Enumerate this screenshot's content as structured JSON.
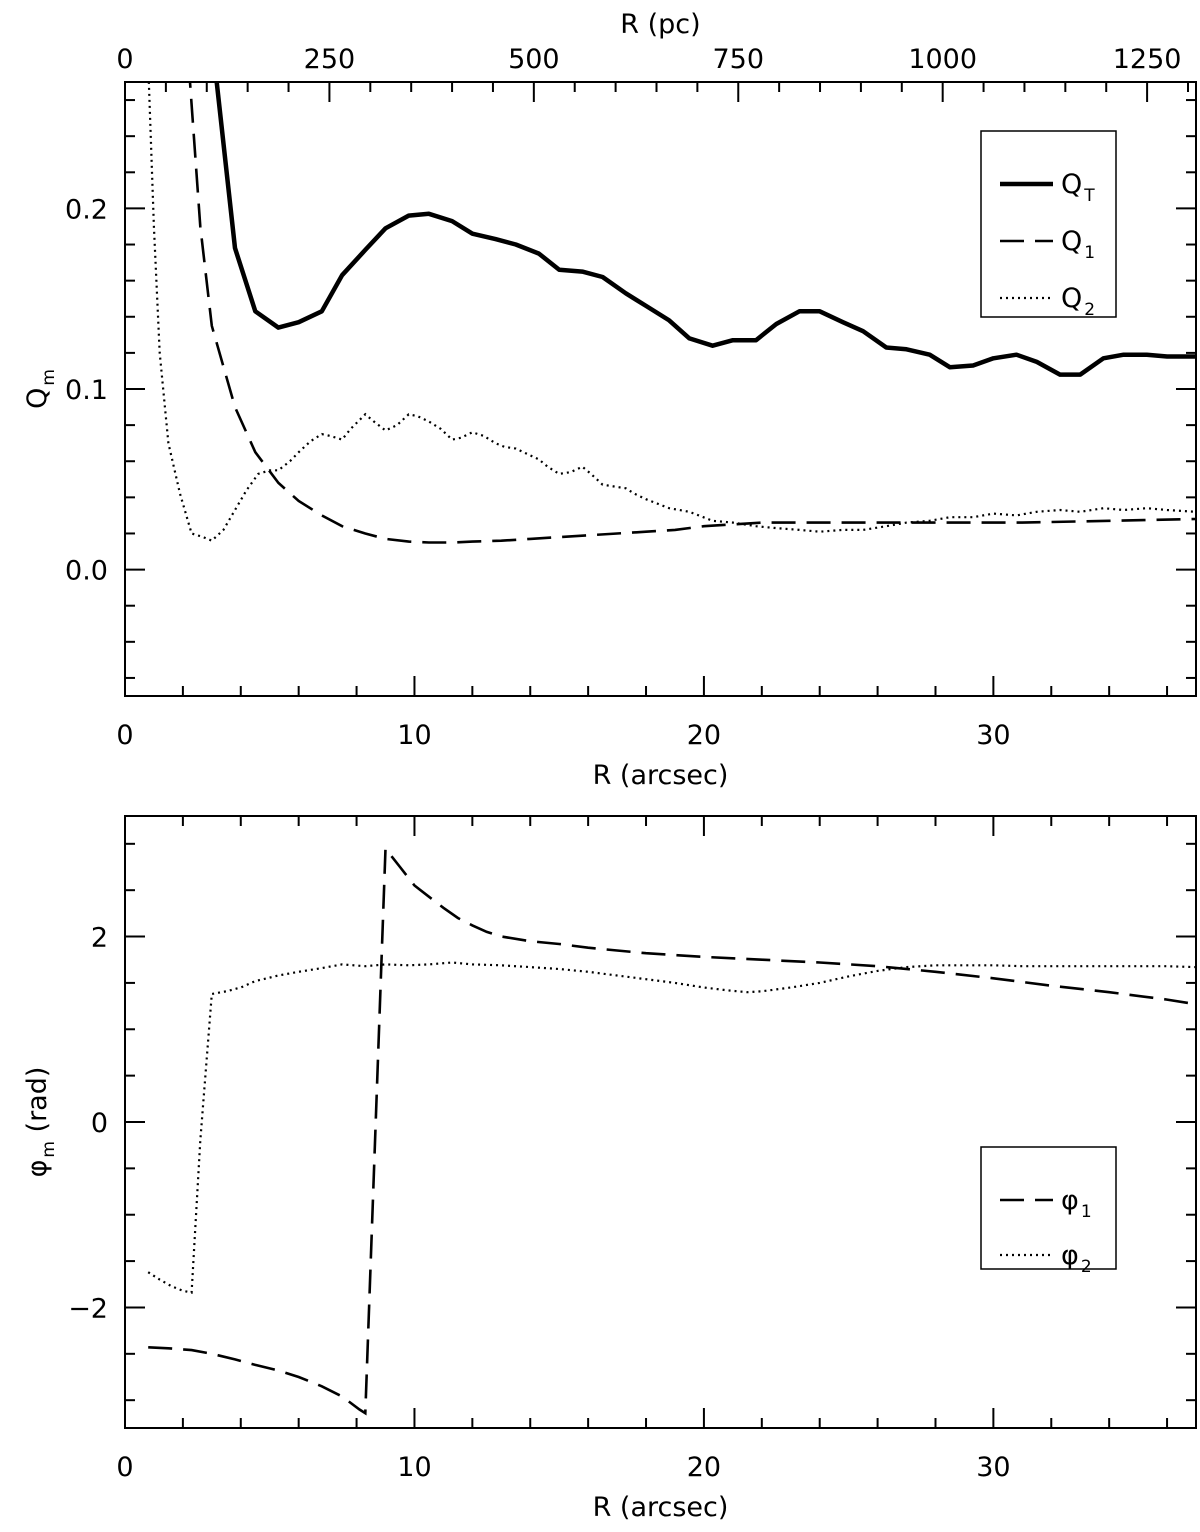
{
  "chart_data": [
    {
      "type": "line",
      "id": "top",
      "xlabel": "R (arcsec)",
      "ylabel": {
        "main": "Q",
        "sub": "m"
      },
      "xlim": [
        0,
        37
      ],
      "ylim": [
        -0.07,
        0.27
      ],
      "xticks": [
        0,
        10,
        20,
        30
      ],
      "xtick_labels": [
        "0",
        "10",
        "20",
        "30"
      ],
      "yticks": [
        0.0,
        0.1,
        0.2
      ],
      "ytick_labels": [
        "0.0",
        "0.1",
        "0.2"
      ],
      "top_axis": {
        "label": "R (pc)",
        "scale_pc_per_arcsec": 35.4,
        "ticks": [
          0,
          250,
          500,
          750,
          1000,
          1250
        ],
        "tick_labels": [
          "0",
          "250",
          "500",
          "750",
          "1000",
          "1250"
        ]
      },
      "legend": {
        "position": "top-right"
      },
      "series": [
        {
          "name": "Q_T",
          "label_main": "Q",
          "label_sub": "T",
          "style": "solid",
          "points": [
            [
              3.1,
              0.28
            ],
            [
              3.8,
              0.178
            ],
            [
              4.5,
              0.143
            ],
            [
              5.3,
              0.134
            ],
            [
              6.0,
              0.137
            ],
            [
              6.8,
              0.143
            ],
            [
              7.5,
              0.163
            ],
            [
              8.3,
              0.177
            ],
            [
              9.0,
              0.189
            ],
            [
              9.8,
              0.196
            ],
            [
              10.5,
              0.197
            ],
            [
              11.3,
              0.193
            ],
            [
              12.0,
              0.186
            ],
            [
              12.8,
              0.183
            ],
            [
              13.5,
              0.18
            ],
            [
              14.3,
              0.175
            ],
            [
              15.0,
              0.166
            ],
            [
              15.8,
              0.165
            ],
            [
              16.5,
              0.162
            ],
            [
              17.3,
              0.153
            ],
            [
              18.0,
              0.146
            ],
            [
              18.8,
              0.138
            ],
            [
              19.5,
              0.128
            ],
            [
              20.3,
              0.124
            ],
            [
              21.0,
              0.127
            ],
            [
              21.8,
              0.127
            ],
            [
              22.5,
              0.136
            ],
            [
              23.3,
              0.143
            ],
            [
              24.0,
              0.143
            ],
            [
              24.8,
              0.137
            ],
            [
              25.5,
              0.132
            ],
            [
              26.3,
              0.123
            ],
            [
              27.0,
              0.122
            ],
            [
              27.8,
              0.119
            ],
            [
              28.5,
              0.112
            ],
            [
              29.3,
              0.113
            ],
            [
              30.0,
              0.117
            ],
            [
              30.8,
              0.119
            ],
            [
              31.5,
              0.115
            ],
            [
              32.3,
              0.108
            ],
            [
              33.0,
              0.108
            ],
            [
              33.8,
              0.117
            ],
            [
              34.5,
              0.119
            ],
            [
              35.3,
              0.119
            ],
            [
              36.0,
              0.118
            ],
            [
              37.0,
              0.118
            ]
          ]
        },
        {
          "name": "Q_1",
          "label_main": "Q",
          "label_sub": "1",
          "style": "dashed",
          "points": [
            [
              2.2,
              0.28
            ],
            [
              2.6,
              0.19
            ],
            [
              3.0,
              0.135
            ],
            [
              3.8,
              0.09
            ],
            [
              4.5,
              0.065
            ],
            [
              5.3,
              0.048
            ],
            [
              6.0,
              0.038
            ],
            [
              6.8,
              0.03
            ],
            [
              7.5,
              0.024
            ],
            [
              8.3,
              0.02
            ],
            [
              9.0,
              0.017
            ],
            [
              9.8,
              0.0155
            ],
            [
              10.5,
              0.015
            ],
            [
              11.3,
              0.015
            ],
            [
              12.0,
              0.0155
            ],
            [
              13.0,
              0.016
            ],
            [
              14.0,
              0.017
            ],
            [
              15.0,
              0.018
            ],
            [
              16.0,
              0.019
            ],
            [
              17.0,
              0.02
            ],
            [
              18.0,
              0.021
            ],
            [
              19.0,
              0.022
            ],
            [
              20.0,
              0.024
            ],
            [
              21.0,
              0.025
            ],
            [
              22.0,
              0.026
            ],
            [
              25.0,
              0.026
            ],
            [
              28.0,
              0.026
            ],
            [
              31.0,
              0.026
            ],
            [
              34.0,
              0.027
            ],
            [
              37.0,
              0.028
            ]
          ]
        },
        {
          "name": "Q_2",
          "label_main": "Q",
          "label_sub": "2",
          "style": "dotted",
          "points": [
            [
              0.8,
              0.28
            ],
            [
              1.0,
              0.19
            ],
            [
              1.2,
              0.12
            ],
            [
              1.5,
              0.07
            ],
            [
              1.9,
              0.042
            ],
            [
              2.3,
              0.02
            ],
            [
              2.7,
              0.018
            ],
            [
              3.0,
              0.016
            ],
            [
              3.4,
              0.022
            ],
            [
              3.8,
              0.033
            ],
            [
              4.2,
              0.044
            ],
            [
              4.6,
              0.053
            ],
            [
              5.0,
              0.055
            ],
            [
              5.3,
              0.055
            ],
            [
              5.7,
              0.06
            ],
            [
              6.0,
              0.065
            ],
            [
              6.4,
              0.071
            ],
            [
              6.8,
              0.075
            ],
            [
              7.1,
              0.074
            ],
            [
              7.5,
              0.072
            ],
            [
              7.8,
              0.078
            ],
            [
              8.3,
              0.086
            ],
            [
              8.6,
              0.082
            ],
            [
              9.0,
              0.077
            ],
            [
              9.4,
              0.08
            ],
            [
              9.8,
              0.086
            ],
            [
              10.1,
              0.085
            ],
            [
              10.5,
              0.082
            ],
            [
              10.9,
              0.078
            ],
            [
              11.3,
              0.072
            ],
            [
              11.6,
              0.073
            ],
            [
              12.0,
              0.076
            ],
            [
              12.4,
              0.074
            ],
            [
              12.8,
              0.07
            ],
            [
              13.1,
              0.068
            ],
            [
              13.5,
              0.067
            ],
            [
              13.9,
              0.064
            ],
            [
              14.3,
              0.061
            ],
            [
              14.6,
              0.057
            ],
            [
              15.0,
              0.053
            ],
            [
              15.4,
              0.054
            ],
            [
              15.8,
              0.057
            ],
            [
              16.1,
              0.053
            ],
            [
              16.5,
              0.047
            ],
            [
              16.9,
              0.046
            ],
            [
              17.3,
              0.045
            ],
            [
              17.6,
              0.042
            ],
            [
              18.0,
              0.039
            ],
            [
              18.8,
              0.034
            ],
            [
              19.5,
              0.032
            ],
            [
              20.3,
              0.027
            ],
            [
              21.0,
              0.026
            ],
            [
              21.8,
              0.024
            ],
            [
              22.5,
              0.023
            ],
            [
              23.3,
              0.022
            ],
            [
              24.0,
              0.021
            ],
            [
              24.8,
              0.022
            ],
            [
              25.5,
              0.022
            ],
            [
              26.3,
              0.024
            ],
            [
              27.0,
              0.026
            ],
            [
              27.8,
              0.027
            ],
            [
              28.5,
              0.029
            ],
            [
              29.3,
              0.029
            ],
            [
              30.0,
              0.031
            ],
            [
              30.8,
              0.03
            ],
            [
              31.5,
              0.032
            ],
            [
              32.3,
              0.033
            ],
            [
              33.0,
              0.032
            ],
            [
              33.8,
              0.034
            ],
            [
              34.5,
              0.033
            ],
            [
              35.3,
              0.034
            ],
            [
              36.0,
              0.033
            ],
            [
              37.0,
              0.032
            ]
          ]
        }
      ]
    },
    {
      "type": "line",
      "id": "bottom",
      "xlabel": "R (arcsec)",
      "ylabel": {
        "main": "φ",
        "sub": "m",
        "rest": " (rad)"
      },
      "xlim": [
        0,
        37
      ],
      "ylim": [
        -3.3,
        3.3
      ],
      "xticks": [
        0,
        10,
        20,
        30
      ],
      "xtick_labels": [
        "0",
        "10",
        "20",
        "30"
      ],
      "yticks": [
        -2,
        0,
        2
      ],
      "ytick_labels": [
        "−2",
        "0",
        "2"
      ],
      "legend": {
        "position": "center-right"
      },
      "series": [
        {
          "name": "phi_1",
          "label_main": "φ",
          "label_sub": "1",
          "style": "dashed",
          "points": [
            [
              0.8,
              -2.43
            ],
            [
              1.5,
              -2.44
            ],
            [
              2.3,
              -2.46
            ],
            [
              3.0,
              -2.5
            ],
            [
              3.8,
              -2.56
            ],
            [
              4.5,
              -2.62
            ],
            [
              5.3,
              -2.68
            ],
            [
              6.0,
              -2.75
            ],
            [
              6.8,
              -2.85
            ],
            [
              7.5,
              -2.96
            ],
            [
              8.1,
              -3.1
            ],
            [
              8.3,
              -3.14
            ],
            [
              9.0,
              2.95
            ],
            [
              9.5,
              2.75
            ],
            [
              10.0,
              2.55
            ],
            [
              10.5,
              2.43
            ],
            [
              11.0,
              2.31
            ],
            [
              11.5,
              2.2
            ],
            [
              12.0,
              2.12
            ],
            [
              12.5,
              2.05
            ],
            [
              13.0,
              2.0
            ],
            [
              14.0,
              1.95
            ],
            [
              15.0,
              1.92
            ],
            [
              16.0,
              1.88
            ],
            [
              17.0,
              1.85
            ],
            [
              18.0,
              1.82
            ],
            [
              19.0,
              1.8
            ],
            [
              20.0,
              1.78
            ],
            [
              22.0,
              1.75
            ],
            [
              24.0,
              1.72
            ],
            [
              26.0,
              1.68
            ],
            [
              28.0,
              1.62
            ],
            [
              30.0,
              1.55
            ],
            [
              32.0,
              1.47
            ],
            [
              34.0,
              1.4
            ],
            [
              36.0,
              1.32
            ],
            [
              37.0,
              1.27
            ]
          ]
        },
        {
          "name": "phi_2",
          "label_main": "φ",
          "label_sub": "2",
          "style": "dotted",
          "points": [
            [
              0.8,
              -1.62
            ],
            [
              1.2,
              -1.7
            ],
            [
              1.6,
              -1.77
            ],
            [
              2.0,
              -1.82
            ],
            [
              2.3,
              -1.84
            ],
            [
              2.6,
              -0.2
            ],
            [
              3.0,
              1.38
            ],
            [
              3.5,
              1.41
            ],
            [
              4.0,
              1.45
            ],
            [
              4.5,
              1.52
            ],
            [
              5.3,
              1.58
            ],
            [
              6.0,
              1.62
            ],
            [
              6.8,
              1.66
            ],
            [
              7.5,
              1.7
            ],
            [
              8.3,
              1.68
            ],
            [
              9.0,
              1.7
            ],
            [
              9.8,
              1.69
            ],
            [
              10.5,
              1.7
            ],
            [
              11.3,
              1.72
            ],
            [
              12.0,
              1.7
            ],
            [
              13.0,
              1.69
            ],
            [
              14.0,
              1.67
            ],
            [
              15.0,
              1.65
            ],
            [
              16.0,
              1.62
            ],
            [
              17.0,
              1.58
            ],
            [
              18.0,
              1.54
            ],
            [
              19.0,
              1.5
            ],
            [
              20.0,
              1.45
            ],
            [
              20.8,
              1.42
            ],
            [
              21.5,
              1.4
            ],
            [
              22.0,
              1.41
            ],
            [
              23.0,
              1.45
            ],
            [
              24.0,
              1.5
            ],
            [
              25.0,
              1.57
            ],
            [
              26.0,
              1.63
            ],
            [
              27.0,
              1.67
            ],
            [
              28.0,
              1.69
            ],
            [
              29.0,
              1.69
            ],
            [
              30.0,
              1.69
            ],
            [
              31.0,
              1.68
            ],
            [
              32.0,
              1.68
            ],
            [
              33.0,
              1.68
            ],
            [
              34.0,
              1.68
            ],
            [
              35.0,
              1.68
            ],
            [
              36.0,
              1.68
            ],
            [
              37.0,
              1.67
            ]
          ]
        }
      ]
    }
  ]
}
